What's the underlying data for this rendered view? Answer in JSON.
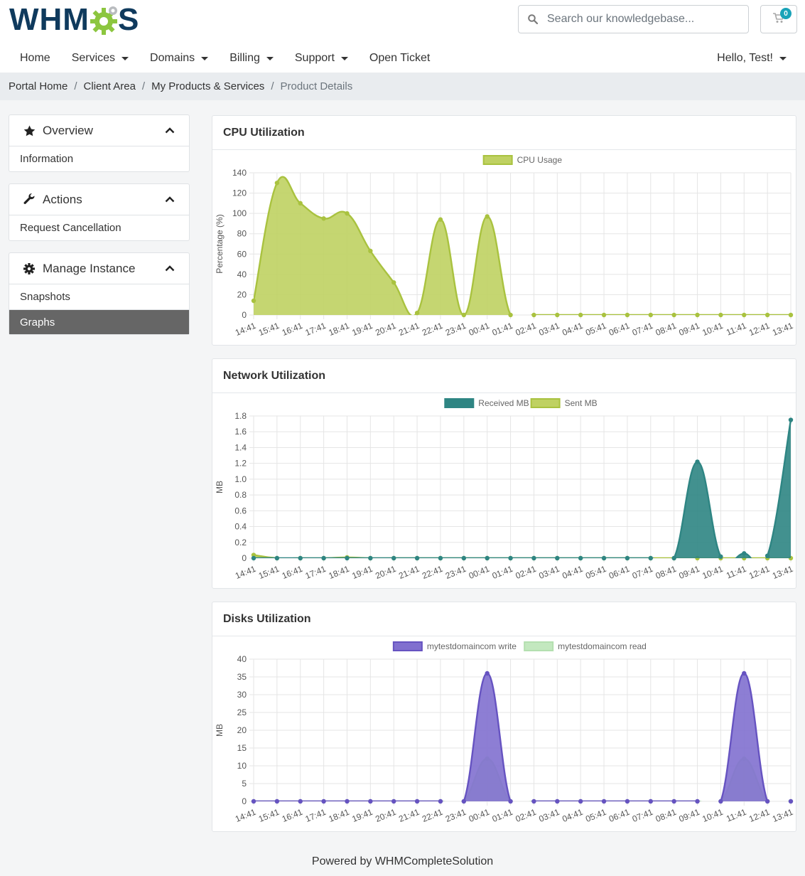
{
  "brand": {
    "logo_text_left": "WHM",
    "logo_text_right": "S",
    "colors": {
      "primary": "#0f3a5d",
      "gear": "#8cc63f"
    }
  },
  "header": {
    "search": {
      "placeholder": "Search our knowledgebase..."
    },
    "cart": {
      "count": "0",
      "icon": "cart-icon"
    },
    "nav": [
      {
        "label": "Home",
        "dropdown": false
      },
      {
        "label": "Services",
        "dropdown": true
      },
      {
        "label": "Domains",
        "dropdown": true
      },
      {
        "label": "Billing",
        "dropdown": true
      },
      {
        "label": "Support",
        "dropdown": true
      },
      {
        "label": "Open Ticket",
        "dropdown": false
      }
    ],
    "user_menu": "Hello, Test!"
  },
  "breadcrumb": {
    "items": [
      "Portal Home",
      "Client Area",
      "My Products & Services"
    ],
    "active": "Product Details"
  },
  "sidebar": {
    "panels": [
      {
        "title": "Overview",
        "icon": "star-icon",
        "items": [
          {
            "label": "Information",
            "active": false
          }
        ]
      },
      {
        "title": "Actions",
        "icon": "wrench-icon",
        "items": [
          {
            "label": "Request Cancellation",
            "active": false
          }
        ]
      },
      {
        "title": "Manage Instance",
        "icon": "gear-icon",
        "items": [
          {
            "label": "Snapshots",
            "active": false
          },
          {
            "label": "Graphs",
            "active": true
          }
        ]
      }
    ]
  },
  "charts": {
    "cpu": {
      "title": "CPU Utilization"
    },
    "network": {
      "title": "Network Utilization"
    },
    "disks": {
      "title": "Disks Utilization"
    }
  },
  "chart_data": [
    {
      "id": "cpu",
      "type": "area",
      "title": "CPU Utilization",
      "ylabel": "Percentage (%)",
      "ylim": [
        0,
        140
      ],
      "yticks": [
        0,
        20,
        40,
        60,
        80,
        100,
        120,
        140
      ],
      "grid": true,
      "legend_position": "top",
      "categories": [
        "14:41",
        "15:41",
        "16:41",
        "17:41",
        "18:41",
        "19:41",
        "20:41",
        "21:41",
        "22:41",
        "23:41",
        "00:41",
        "01:41",
        "02:41",
        "03:41",
        "04:41",
        "05:41",
        "06:41",
        "07:41",
        "08:41",
        "09:41",
        "10:41",
        "11:41",
        "12:41",
        "13:41"
      ],
      "series": [
        {
          "name": "CPU Usage",
          "color": "#a9c23f",
          "fill": "#bfd162",
          "values": [
            14,
            130,
            110,
            95,
            100,
            63,
            32,
            2,
            94,
            0,
            97,
            0,
            0,
            0,
            0,
            0,
            0,
            0,
            0,
            0,
            0,
            0,
            0,
            0
          ]
        }
      ]
    },
    {
      "id": "network",
      "type": "area",
      "title": "Network Utilization",
      "ylabel": "MB",
      "ylim": [
        0,
        1.8
      ],
      "yticks": [
        0,
        0.2,
        0.4,
        0.6,
        0.8,
        1.0,
        1.2,
        1.4,
        1.6,
        1.8
      ],
      "grid": true,
      "legend_position": "top",
      "categories": [
        "14:41",
        "15:41",
        "16:41",
        "17:41",
        "18:41",
        "19:41",
        "20:41",
        "21:41",
        "22:41",
        "23:41",
        "00:41",
        "01:41",
        "02:41",
        "03:41",
        "04:41",
        "05:41",
        "06:41",
        "07:41",
        "08:41",
        "09:41",
        "10:41",
        "11:41",
        "12:41",
        "13:41"
      ],
      "series": [
        {
          "name": "Received MB",
          "color": "#2e8583",
          "fill": "#2e8583",
          "values": [
            0,
            0,
            0,
            0,
            0,
            0,
            0,
            0,
            0,
            0,
            0,
            0,
            0,
            0,
            0,
            0,
            0,
            0,
            0,
            1.22,
            0.02,
            0.06,
            0.03,
            1.75
          ]
        },
        {
          "name": "Sent MB",
          "color": "#a9c23f",
          "fill": "#bfd162",
          "values": [
            0.04,
            0,
            0,
            0,
            0.01,
            0,
            0,
            0,
            0,
            0,
            0,
            0,
            0,
            0,
            0,
            0,
            0,
            0,
            0,
            0,
            0,
            0,
            0,
            0
          ]
        }
      ]
    },
    {
      "id": "disks",
      "type": "area",
      "title": "Disks Utilization",
      "ylabel": "MB",
      "ylim": [
        0,
        40
      ],
      "yticks": [
        0,
        5,
        10,
        15,
        20,
        25,
        30,
        35,
        40
      ],
      "grid": true,
      "legend_position": "top",
      "categories": [
        "14:41",
        "15:41",
        "16:41",
        "17:41",
        "18:41",
        "19:41",
        "20:41",
        "21:41",
        "22:41",
        "23:41",
        "00:41",
        "01:41",
        "02:41",
        "03:41",
        "04:41",
        "05:41",
        "06:41",
        "07:41",
        "08:41",
        "09:41",
        "10:41",
        "11:41",
        "12:41",
        "13:41"
      ],
      "series": [
        {
          "name": "mytestdomaincom write",
          "color": "#6653c1",
          "fill": "#8170cf",
          "values": [
            0,
            0,
            0,
            0,
            0,
            0,
            0,
            0,
            0,
            0,
            36,
            0,
            0,
            0,
            0,
            0,
            0,
            0,
            0,
            0,
            0,
            36,
            0,
            0
          ]
        },
        {
          "name": "mytestdomaincom read",
          "color": "#b4e0b0",
          "fill": "#c3e8bf",
          "values": [
            0,
            0,
            0,
            0,
            0,
            0,
            0,
            0,
            0,
            0,
            12,
            0,
            0,
            0,
            0,
            0,
            0,
            0,
            0,
            0,
            0,
            12,
            0,
            0
          ]
        }
      ]
    }
  ],
  "footer": {
    "text": "Powered by WHMCompleteSolution"
  }
}
